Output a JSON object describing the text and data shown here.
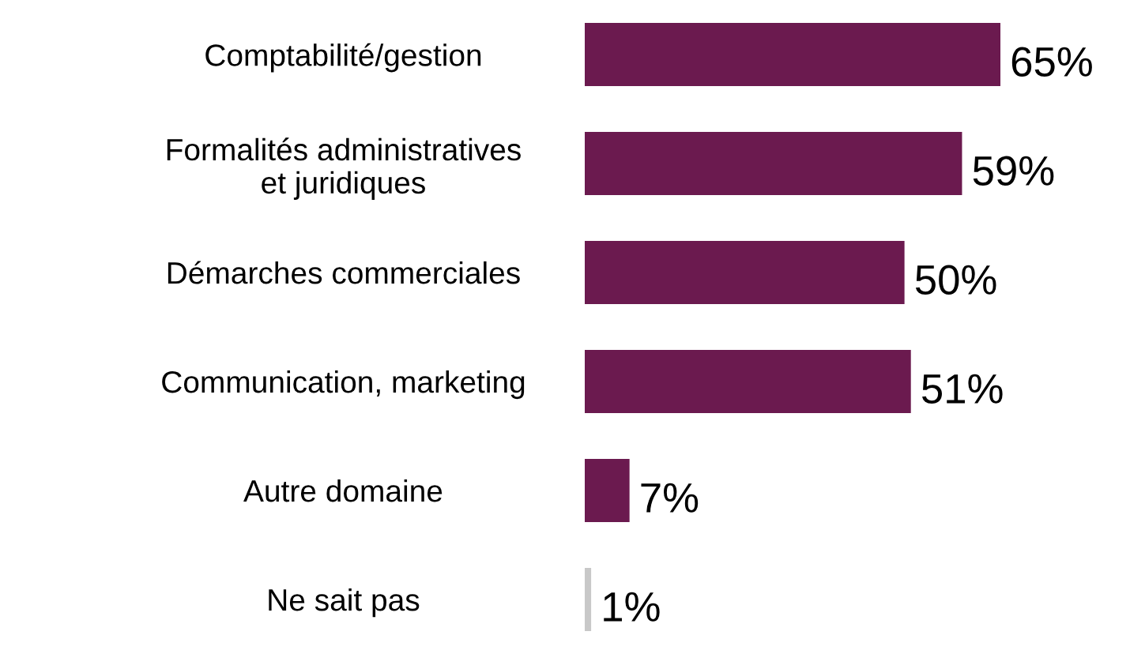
{
  "chart_data": {
    "type": "bar",
    "orientation": "horizontal",
    "categories": [
      "Comptabilité/gestion",
      "Formalités administratives\net juridiques",
      "Démarches commerciales",
      "Communication, marketing",
      "Autre domaine",
      "Ne sait pas"
    ],
    "values": [
      65,
      59,
      50,
      51,
      7,
      1
    ],
    "colors": [
      "#6b1a4f",
      "#6b1a4f",
      "#6b1a4f",
      "#6b1a4f",
      "#6b1a4f",
      "#c8c8c8"
    ],
    "value_labels": [
      "65%",
      "59%",
      "50%",
      "51%",
      "7%",
      "1%"
    ],
    "grid": false,
    "legend": false
  }
}
